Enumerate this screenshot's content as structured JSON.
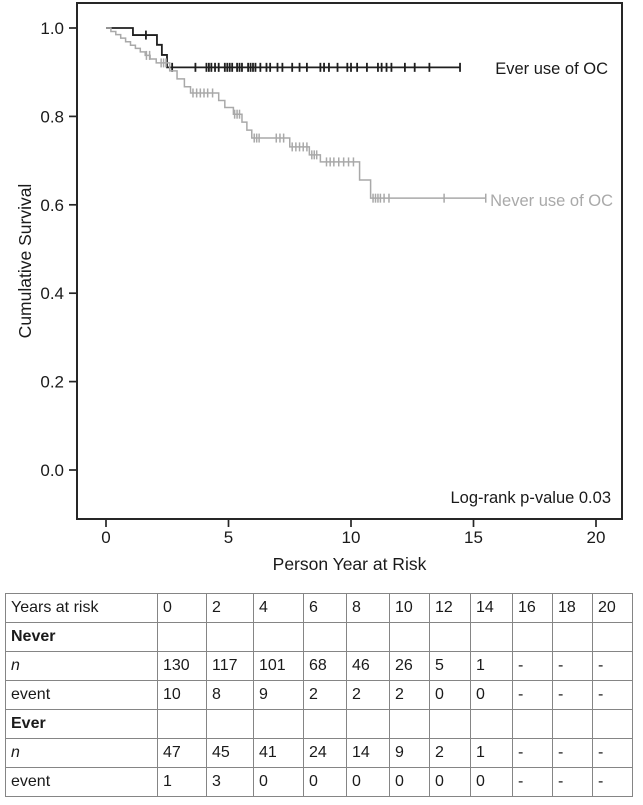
{
  "chart_data": {
    "type": "line",
    "subtype": "kaplan-meier-step",
    "title": "",
    "xlabel": "Person Year at Risk",
    "ylabel": "Cumulative Survival",
    "xlim": [
      0,
      21
    ],
    "ylim": [
      0.0,
      1.05
    ],
    "x_ticks": [
      0,
      5,
      10,
      15,
      20
    ],
    "x_tick_labels": [
      "0",
      "5",
      "10",
      "15",
      "20"
    ],
    "y_ticks": [
      0.0,
      0.2,
      0.4,
      0.6,
      0.8,
      1.0
    ],
    "y_tick_labels": [
      "0.0",
      "0.2",
      "0.4",
      "0.6",
      "0.8",
      "1.0"
    ],
    "grid": false,
    "legend_position": "right-inline",
    "annotation": "Log-rank p-value 0.03",
    "frame_color": "#262626",
    "text_color": "#1a1a1a",
    "series": [
      {
        "name": "Ever use of OC",
        "color": "#1f1f1f",
        "line_width": 1.8,
        "end_x": 14.45,
        "steps": [
          [
            0,
            1.0
          ],
          [
            1.1,
            0.984
          ],
          [
            2.08,
            0.962
          ],
          [
            2.28,
            0.939
          ],
          [
            2.49,
            0.911
          ]
        ],
        "censors": [
          [
            1.63,
            0.984
          ],
          [
            2.7,
            0.911
          ],
          [
            3.65,
            0.911
          ],
          [
            4.1,
            0.911
          ],
          [
            4.2,
            0.911
          ],
          [
            4.3,
            0.911
          ],
          [
            4.45,
            0.911
          ],
          [
            4.6,
            0.911
          ],
          [
            4.85,
            0.911
          ],
          [
            4.95,
            0.911
          ],
          [
            5.05,
            0.911
          ],
          [
            5.15,
            0.911
          ],
          [
            5.35,
            0.911
          ],
          [
            5.45,
            0.911
          ],
          [
            5.55,
            0.911
          ],
          [
            5.8,
            0.911
          ],
          [
            5.9,
            0.911
          ],
          [
            6.0,
            0.911
          ],
          [
            6.1,
            0.911
          ],
          [
            6.3,
            0.911
          ],
          [
            6.55,
            0.911
          ],
          [
            6.7,
            0.911
          ],
          [
            7.0,
            0.911
          ],
          [
            7.2,
            0.911
          ],
          [
            7.6,
            0.911
          ],
          [
            7.9,
            0.911
          ],
          [
            8.2,
            0.911
          ],
          [
            8.75,
            0.911
          ],
          [
            8.9,
            0.911
          ],
          [
            9.1,
            0.911
          ],
          [
            9.45,
            0.911
          ],
          [
            9.85,
            0.911
          ],
          [
            10.0,
            0.911
          ],
          [
            10.25,
            0.911
          ],
          [
            10.65,
            0.911
          ],
          [
            11.1,
            0.911
          ],
          [
            11.25,
            0.911
          ],
          [
            11.45,
            0.911
          ],
          [
            11.65,
            0.911
          ],
          [
            12.2,
            0.911
          ],
          [
            12.6,
            0.911
          ],
          [
            13.2,
            0.911
          ],
          [
            14.45,
            0.911
          ]
        ]
      },
      {
        "name": "Never use of OC",
        "color": "#a9a9a9",
        "line_width": 1.5,
        "end_x": 15.5,
        "steps": [
          [
            0,
            1.0
          ],
          [
            0.2,
            0.992
          ],
          [
            0.4,
            0.985
          ],
          [
            0.6,
            0.977
          ],
          [
            0.8,
            0.969
          ],
          [
            1.0,
            0.961
          ],
          [
            1.2,
            0.954
          ],
          [
            1.4,
            0.946
          ],
          [
            1.6,
            0.938
          ],
          [
            1.8,
            0.93
          ],
          [
            2.05,
            0.921
          ],
          [
            2.6,
            0.903
          ],
          [
            2.9,
            0.885
          ],
          [
            3.2,
            0.867
          ],
          [
            3.45,
            0.853
          ],
          [
            4.6,
            0.836
          ],
          [
            4.85,
            0.82
          ],
          [
            5.2,
            0.805
          ],
          [
            5.55,
            0.787
          ],
          [
            5.75,
            0.769
          ],
          [
            5.95,
            0.751
          ],
          [
            7.5,
            0.731
          ],
          [
            8.3,
            0.713
          ],
          [
            8.75,
            0.697
          ],
          [
            10.35,
            0.656
          ],
          [
            10.8,
            0.615
          ]
        ],
        "censors": [
          [
            1.65,
            0.938
          ],
          [
            1.78,
            0.938
          ],
          [
            2.25,
            0.921
          ],
          [
            2.35,
            0.921
          ],
          [
            2.45,
            0.921
          ],
          [
            3.55,
            0.853
          ],
          [
            3.7,
            0.853
          ],
          [
            3.85,
            0.853
          ],
          [
            4.0,
            0.853
          ],
          [
            4.15,
            0.853
          ],
          [
            4.35,
            0.853
          ],
          [
            5.25,
            0.805
          ],
          [
            5.35,
            0.805
          ],
          [
            5.45,
            0.805
          ],
          [
            6.05,
            0.751
          ],
          [
            6.15,
            0.751
          ],
          [
            6.25,
            0.751
          ],
          [
            6.95,
            0.751
          ],
          [
            7.1,
            0.751
          ],
          [
            7.25,
            0.751
          ],
          [
            7.6,
            0.731
          ],
          [
            7.75,
            0.731
          ],
          [
            7.9,
            0.731
          ],
          [
            8.05,
            0.731
          ],
          [
            8.2,
            0.731
          ],
          [
            8.4,
            0.713
          ],
          [
            8.5,
            0.713
          ],
          [
            8.6,
            0.713
          ],
          [
            9.0,
            0.697
          ],
          [
            9.15,
            0.697
          ],
          [
            9.3,
            0.697
          ],
          [
            9.5,
            0.697
          ],
          [
            9.7,
            0.697
          ],
          [
            9.9,
            0.697
          ],
          [
            10.1,
            0.697
          ],
          [
            10.9,
            0.615
          ],
          [
            11.0,
            0.615
          ],
          [
            11.1,
            0.615
          ],
          [
            11.2,
            0.615
          ],
          [
            11.35,
            0.615
          ],
          [
            11.55,
            0.615
          ],
          [
            13.8,
            0.615
          ],
          [
            15.5,
            0.615
          ]
        ]
      }
    ]
  },
  "risk_table": {
    "header": [
      "Years at risk",
      "0",
      "2",
      "4",
      "6",
      "8",
      "10",
      "12",
      "14",
      "16",
      "18",
      "20"
    ],
    "rows": [
      {
        "label": "Never",
        "style": "bold",
        "values": [
          "",
          "",
          "",
          "",
          "",
          "",
          "",
          "",
          "",
          "",
          ""
        ]
      },
      {
        "label": "n",
        "style": "italic",
        "values": [
          "130",
          "117",
          "101",
          "68",
          "46",
          "26",
          "5",
          "1",
          "-",
          "-",
          "-"
        ]
      },
      {
        "label": "event",
        "style": "normal",
        "values": [
          "10",
          "8",
          "9",
          "2",
          "2",
          "2",
          "0",
          "0",
          "-",
          "-",
          "-"
        ]
      },
      {
        "label": "Ever",
        "style": "bold",
        "values": [
          "",
          "",
          "",
          "",
          "",
          "",
          "",
          "",
          "",
          "",
          ""
        ]
      },
      {
        "label": "n",
        "style": "italic",
        "values": [
          "47",
          "45",
          "41",
          "24",
          "14",
          "9",
          "2",
          "1",
          "-",
          "-",
          "-"
        ]
      },
      {
        "label": "event",
        "style": "normal",
        "values": [
          "1",
          "3",
          "0",
          "0",
          "0",
          "0",
          "0",
          "0",
          "-",
          "-",
          "-"
        ]
      }
    ]
  }
}
